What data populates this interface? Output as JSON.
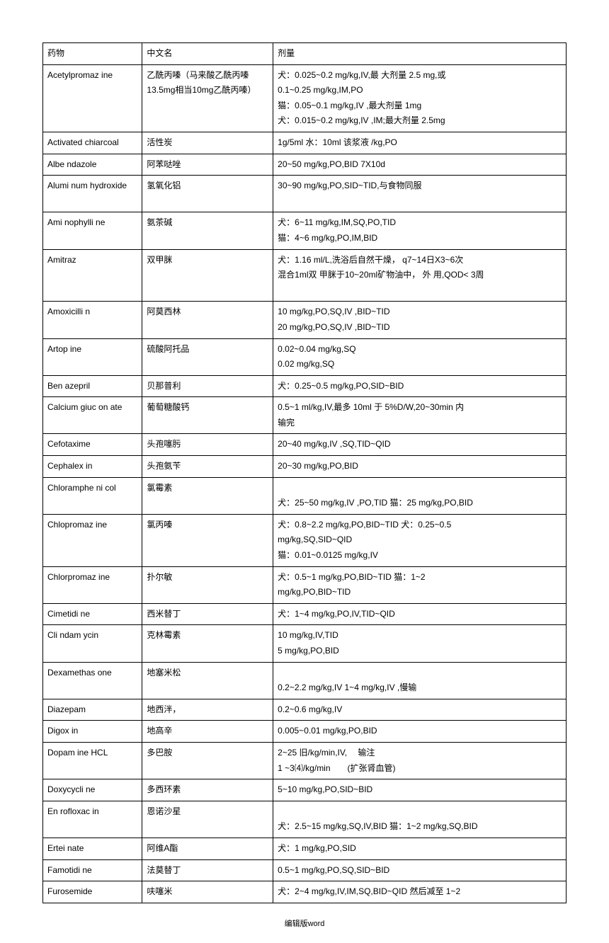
{
  "headers": {
    "drug": "药物",
    "chinese": "中文名",
    "dosage": "剂量"
  },
  "rows": [
    {
      "drug": "Acetylpromaz ine",
      "chinese": "乙酰丙嗪（马来酸乙酰丙嗪 13.5mg相当10mg乙酰丙嗪）",
      "dosage": "犬：0.025~0.2 mg/kg,IV,最 大剂量 2.5 mg,或\n0.1~0.25 mg/kg,IM,PO\n猫：0.05~0.1 mg/kg,IV ,最大剂量 1mg\n犬：0.015~0.2 mg/kg,IV ,IM;最大剂量 2.5mg"
    },
    {
      "drug": "Activated chiarcoal",
      "chinese": "活性炭",
      "dosage": "1g/5ml 水：10ml 该浆液 /kg,PO"
    },
    {
      "drug": "Albe ndazole",
      "chinese": "阿苯哒唑",
      "dosage": "20~50 mg/kg,PO,BID 7X10d"
    },
    {
      "drug": "Alumi num hydroxide",
      "chinese": "氢氧化铝",
      "dosage": "30~90 mg/kg,PO,SID~TID,与食物同服\n "
    },
    {
      "drug": "Ami nophylli ne",
      "chinese": "氨茶碱",
      "dosage": "犬：6~11 mg/kg,IM,SQ,PO,TID\n猫：4~6 mg/kg,PO,IM,BID"
    },
    {
      "drug": "Amitraz",
      "chinese": "双甲脒",
      "dosage": "犬：1.16 ml/L,洗浴后自然干燥， q7~14日X3~6次\n混合1ml双 甲脒于10~20ml矿物油中， 外 用,QOD< 3周\n "
    },
    {
      "drug": "Amoxicilli n",
      "chinese": "阿莫西林",
      "dosage": "10 mg/kg,PO,SQ,IV ,BID~TID\n20 mg/kg,PO,SQ,IV ,BID~TID"
    },
    {
      "drug": "Artop ine",
      "chinese": "硫酸阿托品",
      "dosage": "0.02~0.04 mg/kg,SQ\n0.02 mg/kg,SQ"
    },
    {
      "drug": "Ben azepril",
      "chinese": "贝那普利",
      "dosage": "犬：0.25~0.5 mg/kg,PO,SID~BID"
    },
    {
      "drug": "Calcium giuc on ate",
      "chinese": "葡萄糖酸钙",
      "dosage": "0.5~1 ml/kg,IV,最多 10ml 于 5%D/W,20~30min 内\n输完"
    },
    {
      "drug": "Cefotaxime",
      "chinese": "头孢噻肟",
      "dosage": "20~40 mg/kg,IV ,SQ,TID~QID"
    },
    {
      "drug": "Cephalex in",
      "chinese": "头孢氨苄",
      "dosage": "20~30 mg/kg,PO,BID"
    },
    {
      "drug": "Chloramphe ni col",
      "chinese": "氯霉素",
      "dosage": " \n犬：25~50 mg/kg,IV ,PO,TID 猫：25 mg/kg,PO,BID"
    },
    {
      "drug": "Chlopromaz ine",
      "chinese": "氯丙嗪",
      "dosage": "犬：0.8~2.2 mg/kg,PO,BID~TID 犬：0.25~0.5\nmg/kg,SQ,SID~QID\n猫：0.01~0.0125 mg/kg,IV"
    },
    {
      "drug": "Chlorpromaz ine",
      "chinese": "扑尔敏",
      "dosage": "犬：0.5~1 mg/kg,PO,BID~TID 猫：1~2\nmg/kg,PO,BID~TID"
    },
    {
      "drug": "Cimetidi ne",
      "chinese": "西米替丁",
      "dosage": "犬：1~4 mg/kg,PO,IV,TID~QID"
    },
    {
      "drug": "Cli ndam ycin",
      "chinese": "克林霉素",
      "dosage": "10 mg/kg,IV,TID\n5 mg/kg,PO,BID"
    },
    {
      "drug": "Dexamethas one",
      "chinese": "地塞米松",
      "dosage": " \n0.2~2.2 mg/kg,IV 1~4 mg/kg,IV ,慢输"
    },
    {
      "drug": "Diazepam",
      "chinese": "地西泮，",
      "dosage": "0.2~0.6 mg/kg,IV"
    },
    {
      "drug": "Digox in",
      "chinese": "地高辛",
      "dosage": "0.005~0.01 mg/kg,PO,BID"
    },
    {
      "drug": "Dopam ine HCL",
      "chinese": "多巴胺",
      "dosage": "2~25 旧/kg/min,IV,　 输注\n1 ~3⑷/kg/min　　(扩张肾血管)"
    },
    {
      "drug": "Doxycycli ne",
      "chinese": "多西环素",
      "dosage": "5~10 mg/kg,PO,SID~BID"
    },
    {
      "drug": "En rofloxac in",
      "chinese": "恩诺沙星",
      "dosage": " \n犬：2.5~15 mg/kg,SQ,IV,BID 猫：1~2 mg/kg,SQ,BID"
    },
    {
      "drug": "Ertei nate",
      "chinese": "阿维A酯",
      "dosage": "犬：1 mg/kg,PO,SID"
    },
    {
      "drug": "Famotidi ne",
      "chinese": "法莫替丁",
      "dosage": "0.5~1 mg/kg,PO,SQ,SID~BID"
    },
    {
      "drug": "Furosemide",
      "chinese": "呋噻米",
      "dosage": "犬：2~4 mg/kg,IV,IM,SQ,BID~QID 然后减至 1~2"
    }
  ],
  "footer": "编辑版word"
}
